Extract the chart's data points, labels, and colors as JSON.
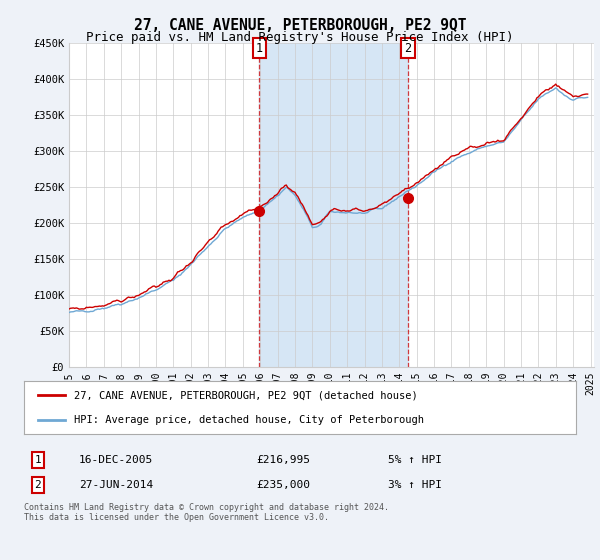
{
  "title": "27, CANE AVENUE, PETERBOROUGH, PE2 9QT",
  "subtitle": "Price paid vs. HM Land Registry's House Price Index (HPI)",
  "legend_line1": "27, CANE AVENUE, PETERBOROUGH, PE2 9QT (detached house)",
  "legend_line2": "HPI: Average price, detached house, City of Peterborough",
  "footnote": "Contains HM Land Registry data © Crown copyright and database right 2024.\nThis data is licensed under the Open Government Licence v3.0.",
  "transaction1_date": "16-DEC-2005",
  "transaction1_price": 216995,
  "transaction1_hpi_change": "5% ↑ HPI",
  "transaction2_date": "27-JUN-2014",
  "transaction2_price": 235000,
  "transaction2_hpi_change": "3% ↑ HPI",
  "hpi_color": "#6fa8d4",
  "price_color": "#cc0000",
  "background_color": "#eef2f8",
  "plot_bg_color": "#ffffff",
  "shade_color": "#d6e6f5",
  "grid_color": "#cccccc",
  "ylim": [
    0,
    450000
  ],
  "yticks": [
    0,
    50000,
    100000,
    150000,
    200000,
    250000,
    300000,
    350000,
    400000,
    450000
  ],
  "ytick_labels": [
    "£0",
    "£50K",
    "£100K",
    "£150K",
    "£200K",
    "£250K",
    "£300K",
    "£350K",
    "£400K",
    "£450K"
  ],
  "xmin": 1995,
  "xmax": 2025.2,
  "transaction1_x": 2005.958,
  "transaction2_x": 2014.497
}
